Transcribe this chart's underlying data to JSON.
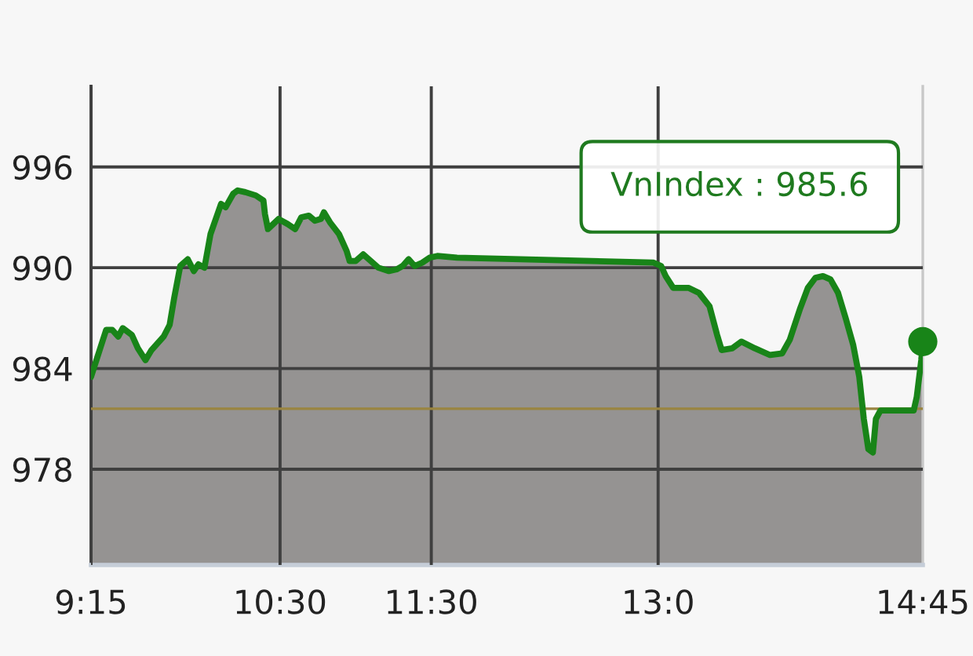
{
  "chart_data": {
    "type": "area",
    "x": [
      9.25,
      9.35,
      9.39,
      9.43,
      9.46,
      9.52,
      9.56,
      9.61,
      9.65,
      9.73,
      9.77,
      9.8,
      9.84,
      9.89,
      9.93,
      9.96,
      10.0,
      10.04,
      10.11,
      10.14,
      10.19,
      10.22,
      10.27,
      10.34,
      10.39,
      10.4,
      10.42,
      10.49,
      10.55,
      10.6,
      10.64,
      10.69,
      10.73,
      10.77,
      10.79,
      10.83,
      10.89,
      10.94,
      10.96,
      11.0,
      11.05,
      11.1,
      11.15,
      11.22,
      11.27,
      11.31,
      11.35,
      11.39,
      11.44,
      11.49,
      11.54,
      11.67,
      12.97,
      13.02,
      13.05,
      13.1,
      13.2,
      13.27,
      13.34,
      13.39,
      13.42,
      13.49,
      13.55,
      13.64,
      13.74,
      13.82,
      13.87,
      13.94,
      13.99,
      14.04,
      14.09,
      14.14,
      14.19,
      14.24,
      14.29,
      14.33,
      14.36,
      14.39,
      14.42,
      14.44,
      14.47,
      14.69,
      14.71,
      14.74,
      14.75
    ],
    "series": [
      {
        "color": "#188418",
        "values": [
          983.5,
          986.3,
          986.3,
          985.9,
          986.4,
          986.0,
          985.2,
          984.5,
          985.1,
          985.9,
          986.6,
          988.2,
          990.1,
          990.5,
          989.8,
          990.2,
          990.0,
          992.0,
          993.8,
          993.6,
          994.4,
          994.6,
          994.5,
          994.3,
          994.0,
          993.2,
          992.3,
          992.9,
          992.6,
          992.3,
          993.0,
          993.1,
          992.8,
          992.9,
          993.3,
          992.7,
          992.0,
          991.0,
          990.4,
          990.4,
          990.8,
          990.4,
          990.0,
          989.8,
          989.9,
          990.1,
          990.5,
          990.1,
          990.3,
          990.6,
          990.7,
          990.6,
          990.3,
          990.1,
          989.5,
          988.8,
          988.8,
          988.5,
          987.7,
          986.0,
          985.1,
          985.2,
          985.6,
          985.2,
          984.8,
          984.9,
          985.7,
          987.6,
          988.8,
          989.4,
          989.5,
          989.3,
          988.5,
          987.0,
          985.4,
          983.5,
          981.0,
          979.2,
          979.0,
          981.0,
          981.5,
          981.5,
          982.3,
          984.5,
          985.6
        ]
      },
      {
        "type": "scatter",
        "color": "#188418",
        "x": [
          14.75
        ],
        "values": [
          985.6
        ]
      }
    ],
    "xlim": [
      9.25,
      14.75
    ],
    "xticks": [
      {
        "value": 9.25,
        "label": "9:15"
      },
      {
        "value": 10.5,
        "label": "10:30"
      },
      {
        "value": 11.5,
        "label": "11:30"
      },
      {
        "value": 13,
        "label": "13:0"
      },
      {
        "value": 14.75,
        "label": "14:45"
      }
    ],
    "ylim": [
      972.3,
      1000.8
    ],
    "yticks": [
      978,
      984,
      990,
      996
    ],
    "grid": true,
    "ref_lines": [
      {
        "axis": "y",
        "value": 981.6,
        "color": "#9a8540"
      }
    ],
    "annotations": [
      "VnIndex : 985.6"
    ]
  }
}
